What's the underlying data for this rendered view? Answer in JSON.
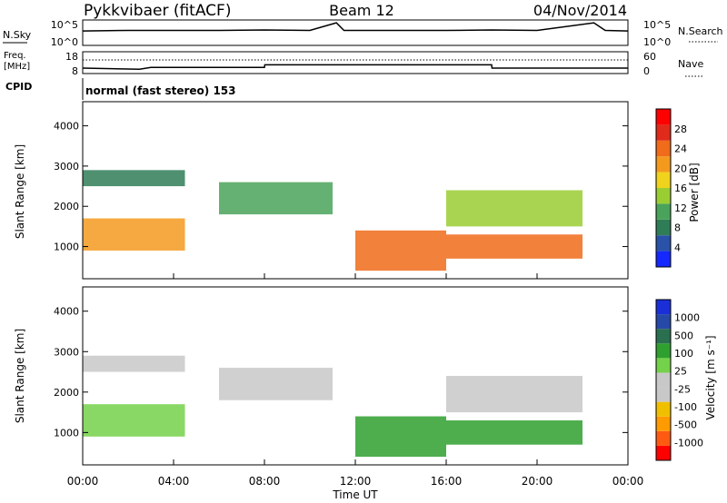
{
  "header": {
    "station": "Pykkvibaer (fitACF)",
    "beam": "Beam 12",
    "date": "04/Nov/2014",
    "cpid_label": "CPID",
    "cpid_text": "normal (fast stereo) 153"
  },
  "colors": {
    "power": [
      "#1428ff",
      "#2a52a8",
      "#2f7d57",
      "#4aa35a",
      "#9acd32",
      "#f0d31c",
      "#f39a1e",
      "#f06b1a",
      "#e02a1a",
      "#ff0000"
    ],
    "velocity": [
      "#ff0000",
      "#ff5a12",
      "#ff9a00",
      "#f0c000",
      "#c8c8c8",
      "#c8c8c8",
      "#74d14a",
      "#2fa02f",
      "#2a6f4f",
      "#2649a8",
      "#1a2fd8"
    ]
  },
  "chart_data": [
    {
      "type": "line",
      "panel": "nsky-nsearch",
      "left_label": "N.Sky",
      "right_label": "N.Search",
      "left_ticks": [
        "10^5",
        "10^0"
      ],
      "right_ticks": [
        "10^5",
        "10^0"
      ],
      "x": [
        "00:00",
        "02:00",
        "04:00",
        "06:00",
        "08:00",
        "10:00",
        "11:10",
        "11:30",
        "12:00",
        "14:00",
        "16:00",
        "18:00",
        "20:00",
        "22:30",
        "23:00",
        "24:00"
      ],
      "series": [
        {
          "name": "N.Sky",
          "values": [
            3.2,
            3.3,
            3.3,
            3.3,
            3.4,
            3.3,
            4.8,
            3.3,
            3.3,
            3.3,
            3.3,
            3.4,
            3.3,
            4.8,
            3.3,
            3.2
          ]
        }
      ]
    },
    {
      "type": "line",
      "panel": "freq-nave",
      "left_label": "Freq.",
      "left_unit": "[MHz]",
      "left_ticks": [
        "18",
        "8"
      ],
      "right_label": "Nave",
      "right_ticks": [
        "60",
        "0"
      ],
      "x": [
        "00:00",
        "02:30",
        "03:00",
        "08:00",
        "08:01",
        "18:00",
        "18:01",
        "24:00"
      ],
      "series": [
        {
          "name": "Freq.",
          "values": [
            10.5,
            10.0,
            10.8,
            10.8,
            12.0,
            12.0,
            10.5,
            10.5
          ]
        }
      ]
    },
    {
      "type": "heatmap",
      "panel": "power",
      "ylabel": "Slant Range [km]",
      "yticks": [
        "4000",
        "3000",
        "2000",
        "1000"
      ],
      "ylim": [
        200,
        4600
      ],
      "colorbar_label": "Power [dB]",
      "colorbar_ticks": [
        "28",
        "24",
        "20",
        "16",
        "12",
        "8",
        "4"
      ],
      "clim": [
        0,
        32
      ],
      "echo_regions": [
        {
          "t": [
            0.0,
            4.5
          ],
          "range": [
            900,
            1700
          ],
          "value": 20
        },
        {
          "t": [
            0.0,
            4.5
          ],
          "range": [
            2500,
            2900
          ],
          "value": 6
        },
        {
          "t": [
            6.0,
            11.0
          ],
          "range": [
            1800,
            2600
          ],
          "value": 12
        },
        {
          "t": [
            12.0,
            16.0
          ],
          "range": [
            400,
            1400
          ],
          "value": 26
        },
        {
          "t": [
            16.0,
            22.0
          ],
          "range": [
            700,
            1300
          ],
          "value": 24
        },
        {
          "t": [
            16.0,
            22.0
          ],
          "range": [
            1500,
            2400
          ],
          "value": 14
        }
      ]
    },
    {
      "type": "heatmap",
      "panel": "velocity",
      "ylabel": "Slant Range [km]",
      "yticks": [
        "4000",
        "3000",
        "2000",
        "1000"
      ],
      "ylim": [
        200,
        4600
      ],
      "colorbar_label": "Velocity [m s⁻¹]",
      "colorbar_ticks": [
        "1000",
        "500",
        "100",
        "25",
        "-25",
        "-100",
        "-500",
        "-1000"
      ],
      "clim": [
        -1000,
        1000
      ],
      "echo_regions": [
        {
          "t": [
            0.0,
            4.5
          ],
          "range": [
            900,
            1700
          ],
          "value": 150
        },
        {
          "t": [
            0.0,
            4.5
          ],
          "range": [
            2500,
            2900
          ],
          "value": 0
        },
        {
          "t": [
            6.0,
            11.0
          ],
          "range": [
            1800,
            2600
          ],
          "value": 0
        },
        {
          "t": [
            12.0,
            16.0
          ],
          "range": [
            400,
            1400
          ],
          "value": 300
        },
        {
          "t": [
            16.0,
            22.0
          ],
          "range": [
            700,
            1300
          ],
          "value": 400
        },
        {
          "t": [
            16.0,
            22.0
          ],
          "range": [
            1500,
            2400
          ],
          "value": 0
        }
      ]
    }
  ],
  "xaxis": {
    "label": "Time UT",
    "ticks": [
      "00:00",
      "04:00",
      "08:00",
      "12:00",
      "16:00",
      "20:00",
      "00:00"
    ]
  }
}
